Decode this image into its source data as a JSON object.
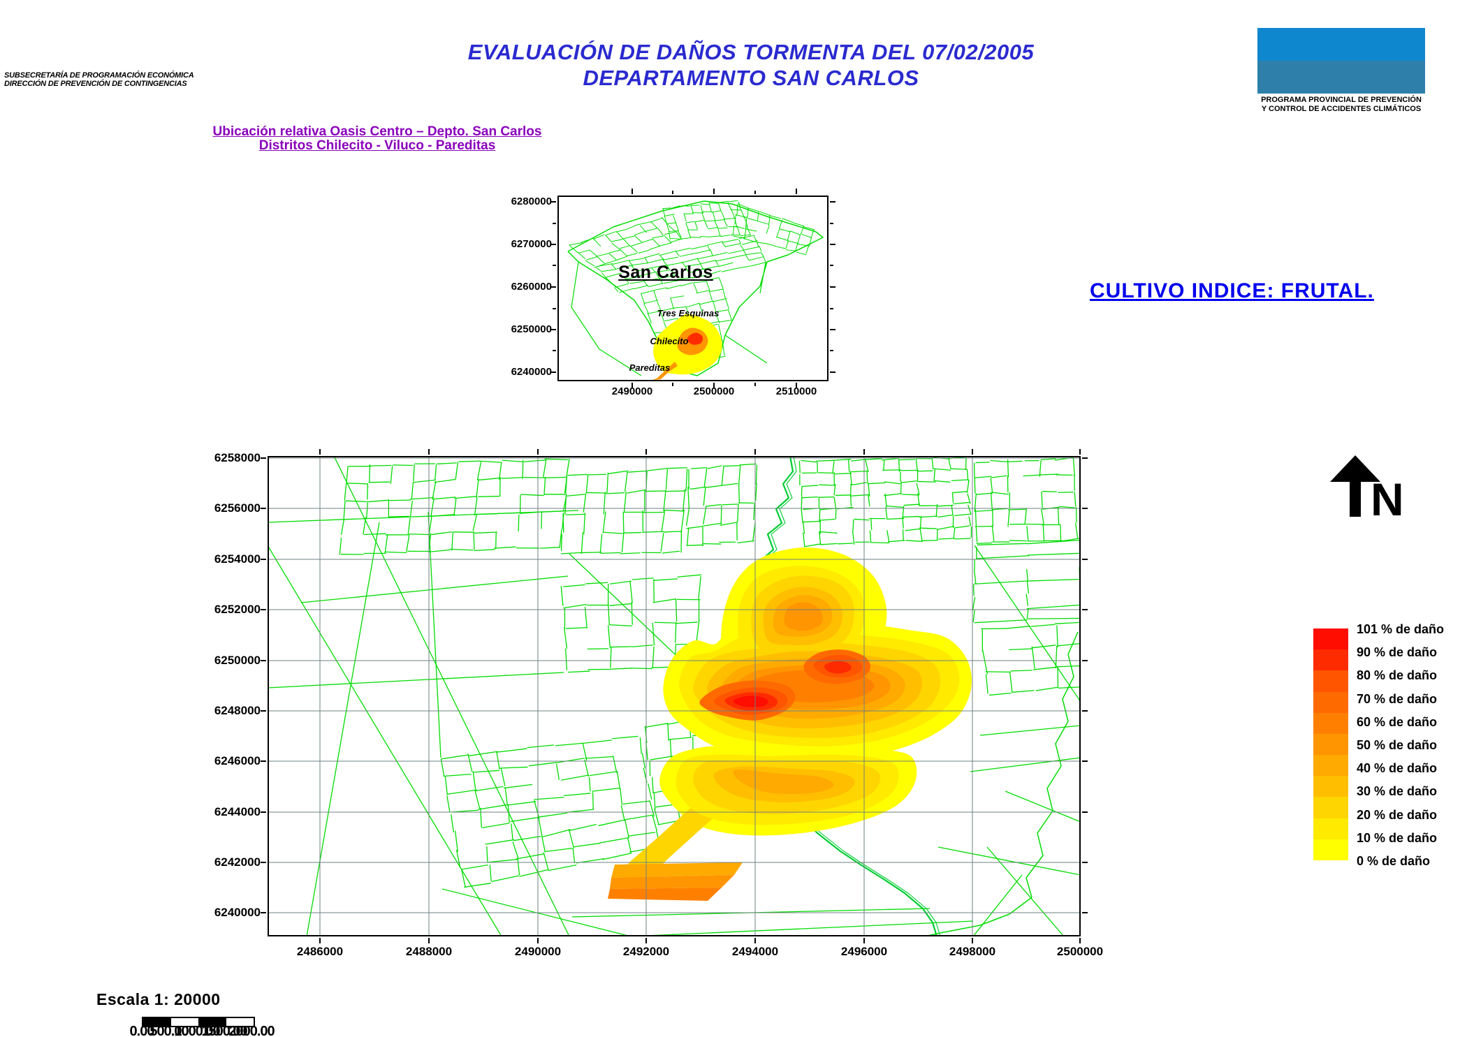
{
  "header": {
    "agency_line1": "SUBSECRETARÍA DE PROGRAMACIÓN ECONÓMICA",
    "agency_line2": "DIRECCIÓN DE PREVENCIÓN DE CONTINGENCIAS",
    "title_line1": "EVALUACIÓN DE DAÑOS TORMENTA DEL 07/02/2005",
    "title_line2": "DEPARTAMENTO SAN CARLOS"
  },
  "logo": {
    "caption_line1": "PROGRAMA PROVINCIAL DE PREVENCIÓN",
    "caption_line2": "Y CONTROL DE ACCIDENTES CLIMÁTICOS",
    "color_top": "#0f87cf",
    "color_bottom": "#2e80ab"
  },
  "links": {
    "line1": "Ubicación relativa Oasis Centro – Depto. San Carlos",
    "line2": "Distritos Chilecito - Viluco - Pareditas"
  },
  "cultivo_label": "CULTIVO INDICE: FRUTAL.",
  "overview_map": {
    "region_label": "San Carlos",
    "place_labels": [
      "Tres Esquinas",
      "Chilecito",
      "Pareditas"
    ],
    "y_tick_labels": [
      "6280000",
      "6270000",
      "6260000",
      "6250000",
      "6240000"
    ],
    "x_tick_labels": [
      "2490000",
      "2500000",
      "2510000"
    ]
  },
  "main_map": {
    "y_tick_labels": [
      "6258000",
      "6256000",
      "6254000",
      "6252000",
      "6250000",
      "6248000",
      "6246000",
      "6244000",
      "6242000",
      "6240000"
    ],
    "x_tick_labels": [
      "2486000",
      "2488000",
      "2490000",
      "2492000",
      "2494000",
      "2496000",
      "2498000",
      "2500000"
    ]
  },
  "north_label": "N",
  "legend": {
    "entries": [
      {
        "label": "101 % de daño",
        "color": "#ff0d00"
      },
      {
        "label": "90 % de daño",
        "color": "#ff2b00"
      },
      {
        "label": "80 % de daño",
        "color": "#ff5500"
      },
      {
        "label": "70 % de daño",
        "color": "#ff6a00"
      },
      {
        "label": "60 % de daño",
        "color": "#ff8000"
      },
      {
        "label": "50 % de daño",
        "color": "#ff9500"
      },
      {
        "label": "40 % de daño",
        "color": "#ffaa00"
      },
      {
        "label": "30 % de daño",
        "color": "#ffbf00"
      },
      {
        "label": "20 % de daño",
        "color": "#ffd500"
      },
      {
        "label": "10 % de daño",
        "color": "#ffea00"
      },
      {
        "label": "0 % de daño",
        "color": "#ffff00"
      }
    ]
  },
  "scale": {
    "text": "Escala 1: 20000",
    "bar_numbers": [
      "0.00",
      "500.00",
      "1000.00",
      "1500.00",
      "2000.00"
    ]
  },
  "colors": {
    "title_blue": "#2a2ad0",
    "link_purple": "#8a00bb",
    "cultivo_blue": "#0000ee",
    "parcel_green": "#00dd00",
    "river_green": "#00cc33",
    "grid_gray": "#6f8080"
  }
}
